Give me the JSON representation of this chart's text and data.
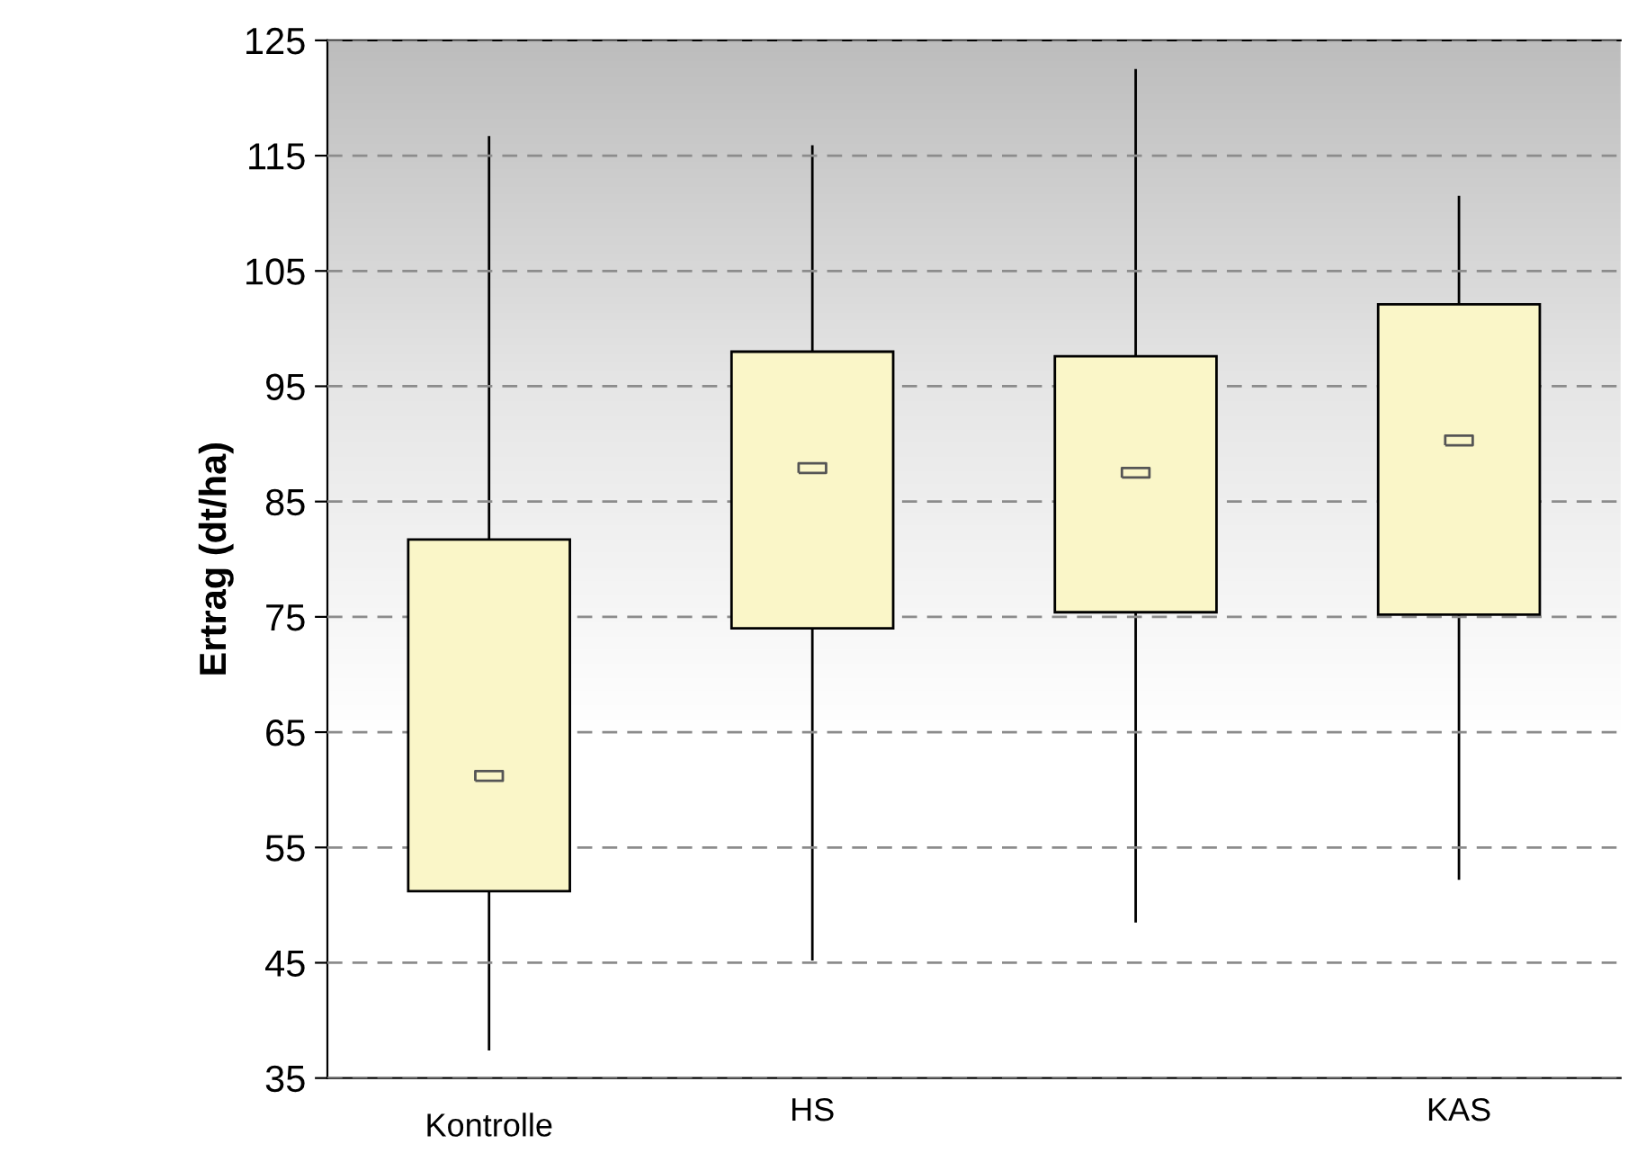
{
  "chart_data": {
    "type": "box",
    "ylabel": "Ertrag (dt/ha)",
    "categories": [
      "Kontrolle",
      "HS",
      null,
      "KAS"
    ],
    "boxes": [
      {
        "low": 37.5,
        "q1": 51.2,
        "mean": 61.2,
        "q3": 81.7,
        "high": 116.6
      },
      {
        "low": 45.3,
        "q1": 74.0,
        "mean": 87.9,
        "q3": 98.0,
        "high": 115.8
      },
      {
        "low": 48.6,
        "q1": 75.4,
        "mean": 87.5,
        "q3": 97.6,
        "high": 122.4
      },
      {
        "low": 52.3,
        "q1": 75.2,
        "mean": 90.3,
        "q3": 102.1,
        "high": 111.4
      }
    ],
    "color": "#faf6c8",
    "ylim": [
      35,
      125
    ],
    "yticks": [
      35,
      45,
      55,
      65,
      75,
      85,
      95,
      105,
      115,
      125
    ],
    "grid": "y"
  }
}
